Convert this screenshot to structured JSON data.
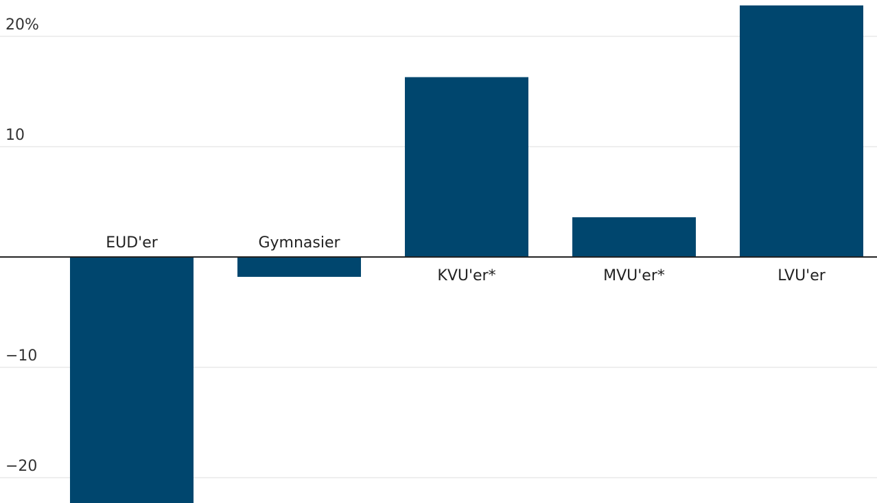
{
  "chart_data": {
    "type": "bar",
    "categories": [
      "EUD'er",
      "Gymnasier",
      "KVU'er*",
      "MVU'er*",
      "LVU'er"
    ],
    "values": [
      -22.5,
      -1.8,
      16.3,
      3.6,
      22.8
    ],
    "ylim": [
      -22.5,
      23
    ],
    "yticks": [
      {
        "value": 20,
        "label": "20%"
      },
      {
        "value": 10,
        "label": "10"
      },
      {
        "value": -10,
        "label": "−10"
      },
      {
        "value": -20,
        "label": "−20"
      }
    ],
    "grid": true,
    "bar_color": "#00466e",
    "title": "",
    "xlabel": "",
    "ylabel": ""
  }
}
